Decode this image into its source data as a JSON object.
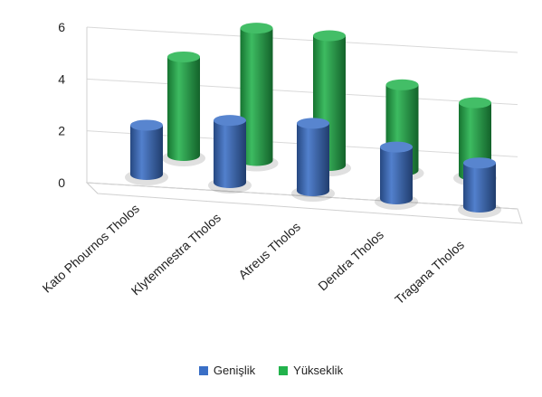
{
  "chart_data": {
    "type": "bar",
    "style": "3d-cylinder",
    "title": "",
    "xlabel": "",
    "ylabel": "",
    "categories": [
      "Kato Phournos Tholos",
      "Klytemnestra Tholos",
      "Atreus Tholos",
      "Dendra Tholos",
      "Tragana Tholos"
    ],
    "series": [
      {
        "name": "Genişlik",
        "values": [
          1.9,
          2.4,
          2.6,
          2.0,
          1.7
        ],
        "color": "#3a6fc6"
      },
      {
        "name": "Yükseklik",
        "values": [
          3.8,
          5.1,
          5.0,
          3.3,
          2.8
        ],
        "color": "#22b24c"
      }
    ],
    "ylim": [
      0,
      6
    ],
    "yticks": [
      "0",
      "2",
      "4",
      "6"
    ],
    "grid": true,
    "legend_position": "bottom"
  }
}
